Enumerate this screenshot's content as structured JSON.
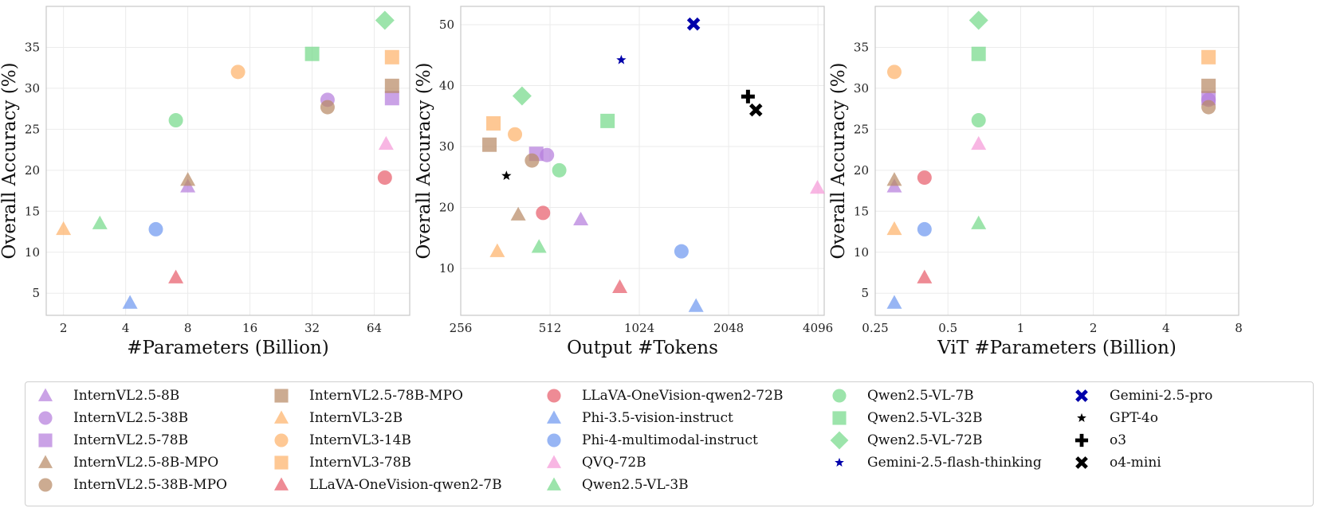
{
  "marker_styles": {
    "InternVL2.5-8B": {
      "shape": "triangle",
      "color": "#b57edc"
    },
    "InternVL2.5-38B": {
      "shape": "circle",
      "color": "#b57edc"
    },
    "InternVL2.5-78B": {
      "shape": "square",
      "color": "#b57edc"
    },
    "InternVL2.5-8B-MPO": {
      "shape": "triangle",
      "color": "#b98b66"
    },
    "InternVL2.5-38B-MPO": {
      "shape": "circle",
      "color": "#b98b66"
    },
    "InternVL2.5-78B-MPO": {
      "shape": "square",
      "color": "#b98b66"
    },
    "InternVL3-2B": {
      "shape": "triangle",
      "color": "#fdb36b"
    },
    "InternVL3-14B": {
      "shape": "circle",
      "color": "#fdb36b"
    },
    "InternVL3-78B": {
      "shape": "square",
      "color": "#fdb36b"
    },
    "LLaVA-OneVision-qwen2-7B": {
      "shape": "triangle",
      "color": "#e85e6c"
    },
    "LLaVA-OneVision-qwen2-72B": {
      "shape": "circle",
      "color": "#e85e6c"
    },
    "Phi-3.5-vision-instruct": {
      "shape": "triangle",
      "color": "#6f98f0"
    },
    "Phi-4-multimodal-instruct": {
      "shape": "circle",
      "color": "#6f98f0"
    },
    "QVQ-72B": {
      "shape": "triangle",
      "color": "#f59ad8"
    },
    "Qwen2.5-VL-3B": {
      "shape": "triangle",
      "color": "#76d98a"
    },
    "Qwen2.5-VL-7B": {
      "shape": "circle",
      "color": "#76d98a"
    },
    "Qwen2.5-VL-32B": {
      "shape": "square",
      "color": "#76d98a"
    },
    "Qwen2.5-VL-72B": {
      "shape": "diamond",
      "color": "#76d98a"
    },
    "Gemini-2.5-flash-thinking": {
      "shape": "star",
      "color": "#0000aa"
    },
    "Gemini-2.5-pro": {
      "shape": "x",
      "color": "#0000aa"
    },
    "GPT-4o": {
      "shape": "star",
      "color": "#000000"
    },
    "o3": {
      "shape": "plus",
      "color": "#000000"
    },
    "o4-mini": {
      "shape": "x",
      "color": "#000000"
    }
  },
  "legend": {
    "columns": [
      [
        "InternVL2.5-8B",
        "InternVL2.5-38B",
        "InternVL2.5-78B",
        "InternVL2.5-8B-MPO",
        "InternVL2.5-38B-MPO"
      ],
      [
        "InternVL2.5-78B-MPO",
        "InternVL3-2B",
        "InternVL3-14B",
        "InternVL3-78B",
        "LLaVA-OneVision-qwen2-7B"
      ],
      [
        "LLaVA-OneVision-qwen2-72B",
        "Phi-3.5-vision-instruct",
        "Phi-4-multimodal-instruct",
        "QVQ-72B",
        "Qwen2.5-VL-3B"
      ],
      [
        "Qwen2.5-VL-7B",
        "Qwen2.5-VL-32B",
        "Qwen2.5-VL-72B",
        "Gemini-2.5-flash-thinking"
      ],
      [
        "Gemini-2.5-pro",
        "GPT-4o",
        "o3",
        "o4-mini"
      ]
    ]
  },
  "chart_data": [
    {
      "type": "scatter",
      "title": "",
      "xlabel": "#Parameters (Billion)",
      "ylabel": "Overall Accuracy (%)",
      "xscale": "log2",
      "xlim": [
        1.65,
        95
      ],
      "ylim": [
        2.3,
        40
      ],
      "xticks": [
        2,
        4,
        8,
        16,
        32,
        64
      ],
      "xticklabels": [
        "2",
        "4",
        "8",
        "16",
        "32",
        "64"
      ],
      "yticks": [
        5,
        10,
        15,
        20,
        25,
        30,
        35
      ],
      "yticklabels": [
        "5",
        "10",
        "15",
        "20",
        "25",
        "30",
        "35"
      ],
      "grid": true,
      "points": [
        {
          "model": "InternVL2.5-8B",
          "x": 8,
          "y": 18.0
        },
        {
          "model": "InternVL2.5-38B",
          "x": 38,
          "y": 28.6
        },
        {
          "model": "InternVL2.5-78B",
          "x": 78,
          "y": 28.8
        },
        {
          "model": "InternVL2.5-8B-MPO",
          "x": 8,
          "y": 18.8
        },
        {
          "model": "InternVL2.5-38B-MPO",
          "x": 38,
          "y": 27.7
        },
        {
          "model": "InternVL2.5-78B-MPO",
          "x": 78,
          "y": 30.3
        },
        {
          "model": "InternVL3-2B",
          "x": 2,
          "y": 12.8
        },
        {
          "model": "InternVL3-14B",
          "x": 14,
          "y": 32.0
        },
        {
          "model": "InternVL3-78B",
          "x": 78,
          "y": 33.8
        },
        {
          "model": "LLaVA-OneVision-qwen2-7B",
          "x": 7,
          "y": 6.9
        },
        {
          "model": "LLaVA-OneVision-qwen2-72B",
          "x": 72,
          "y": 19.1
        },
        {
          "model": "Phi-3.5-vision-instruct",
          "x": 4.2,
          "y": 3.8
        },
        {
          "model": "Phi-4-multimodal-instruct",
          "x": 5.6,
          "y": 12.8
        },
        {
          "model": "QVQ-72B",
          "x": 73,
          "y": 23.2
        },
        {
          "model": "Qwen2.5-VL-3B",
          "x": 3,
          "y": 13.5
        },
        {
          "model": "Qwen2.5-VL-7B",
          "x": 7,
          "y": 26.1
        },
        {
          "model": "Qwen2.5-VL-32B",
          "x": 32,
          "y": 34.2
        },
        {
          "model": "Qwen2.5-VL-72B",
          "x": 72,
          "y": 38.3
        }
      ]
    },
    {
      "type": "scatter",
      "title": "",
      "xlabel": "Output #Tokens",
      "ylabel": "Overall Accuracy (%)",
      "xscale": "log2",
      "xlim": [
        256,
        4300
      ],
      "ylim": [
        2.3,
        53
      ],
      "xticks": [
        256,
        512,
        1024,
        2048,
        4096
      ],
      "xticklabels": [
        "256",
        "512",
        "1024",
        "2048",
        "4096"
      ],
      "yticks": [
        10,
        20,
        30,
        40,
        50
      ],
      "yticklabels": [
        "10",
        "20",
        "30",
        "40",
        "50"
      ],
      "grid": true,
      "points": [
        {
          "model": "InternVL2.5-8B",
          "x": 650,
          "y": 18.0
        },
        {
          "model": "InternVL2.5-38B",
          "x": 500,
          "y": 28.6
        },
        {
          "model": "InternVL2.5-78B",
          "x": 460,
          "y": 28.8
        },
        {
          "model": "InternVL2.5-8B-MPO",
          "x": 400,
          "y": 18.8
        },
        {
          "model": "InternVL2.5-38B-MPO",
          "x": 445,
          "y": 27.7
        },
        {
          "model": "InternVL2.5-78B-MPO",
          "x": 320,
          "y": 30.3
        },
        {
          "model": "InternVL3-2B",
          "x": 340,
          "y": 12.8
        },
        {
          "model": "InternVL3-14B",
          "x": 390,
          "y": 32.0
        },
        {
          "model": "InternVL3-78B",
          "x": 330,
          "y": 33.8
        },
        {
          "model": "LLaVA-OneVision-qwen2-7B",
          "x": 880,
          "y": 6.9
        },
        {
          "model": "LLaVA-OneVision-qwen2-72B",
          "x": 485,
          "y": 19.1
        },
        {
          "model": "Phi-3.5-vision-instruct",
          "x": 1590,
          "y": 3.8
        },
        {
          "model": "Phi-4-multimodal-instruct",
          "x": 1420,
          "y": 12.8
        },
        {
          "model": "QVQ-72B",
          "x": 4080,
          "y": 23.2
        },
        {
          "model": "Qwen2.5-VL-3B",
          "x": 470,
          "y": 13.5
        },
        {
          "model": "Qwen2.5-VL-7B",
          "x": 550,
          "y": 26.1
        },
        {
          "model": "Qwen2.5-VL-32B",
          "x": 800,
          "y": 34.2
        },
        {
          "model": "Qwen2.5-VL-72B",
          "x": 412,
          "y": 38.3
        },
        {
          "model": "Gemini-2.5-flash-thinking",
          "x": 890,
          "y": 44.2
        },
        {
          "model": "Gemini-2.5-pro",
          "x": 1560,
          "y": 50.1
        },
        {
          "model": "GPT-4o",
          "x": 365,
          "y": 25.2
        },
        {
          "model": "o3",
          "x": 2380,
          "y": 38.2
        },
        {
          "model": "o4-mini",
          "x": 2530,
          "y": 36.0
        }
      ]
    },
    {
      "type": "scatter",
      "title": "",
      "xlabel": "ViT #Parameters (Billion)",
      "ylabel": "Overall Accuracy (%)",
      "xscale": "log2",
      "xlim": [
        0.25,
        8
      ],
      "ylim": [
        2.3,
        40
      ],
      "xticks": [
        0.25,
        0.5,
        1,
        2,
        4,
        8
      ],
      "xticklabels": [
        "0.25",
        "0.5",
        "1",
        "2",
        "4",
        "8"
      ],
      "yticks": [
        5,
        10,
        15,
        20,
        25,
        30,
        35
      ],
      "yticklabels": [
        "5",
        "10",
        "15",
        "20",
        "25",
        "30",
        "35"
      ],
      "grid": true,
      "points": [
        {
          "model": "InternVL2.5-8B",
          "x": 0.3,
          "y": 18.0
        },
        {
          "model": "InternVL2.5-38B",
          "x": 6,
          "y": 28.6
        },
        {
          "model": "InternVL2.5-78B",
          "x": 6,
          "y": 28.8
        },
        {
          "model": "InternVL2.5-8B-MPO",
          "x": 0.3,
          "y": 18.8
        },
        {
          "model": "InternVL2.5-38B-MPO",
          "x": 6,
          "y": 27.7
        },
        {
          "model": "InternVL2.5-78B-MPO",
          "x": 6,
          "y": 30.3
        },
        {
          "model": "InternVL3-2B",
          "x": 0.3,
          "y": 12.8
        },
        {
          "model": "InternVL3-14B",
          "x": 0.3,
          "y": 32.0
        },
        {
          "model": "InternVL3-78B",
          "x": 6,
          "y": 33.8
        },
        {
          "model": "LLaVA-OneVision-qwen2-7B",
          "x": 0.4,
          "y": 6.9
        },
        {
          "model": "LLaVA-OneVision-qwen2-72B",
          "x": 0.4,
          "y": 19.1
        },
        {
          "model": "Phi-3.5-vision-instruct",
          "x": 0.3,
          "y": 3.8
        },
        {
          "model": "Phi-4-multimodal-instruct",
          "x": 0.4,
          "y": 12.8
        },
        {
          "model": "QVQ-72B",
          "x": 0.67,
          "y": 23.2
        },
        {
          "model": "Qwen2.5-VL-3B",
          "x": 0.67,
          "y": 13.5
        },
        {
          "model": "Qwen2.5-VL-7B",
          "x": 0.67,
          "y": 26.1
        },
        {
          "model": "Qwen2.5-VL-32B",
          "x": 0.67,
          "y": 34.2
        },
        {
          "model": "Qwen2.5-VL-72B",
          "x": 0.67,
          "y": 38.3
        }
      ]
    }
  ]
}
